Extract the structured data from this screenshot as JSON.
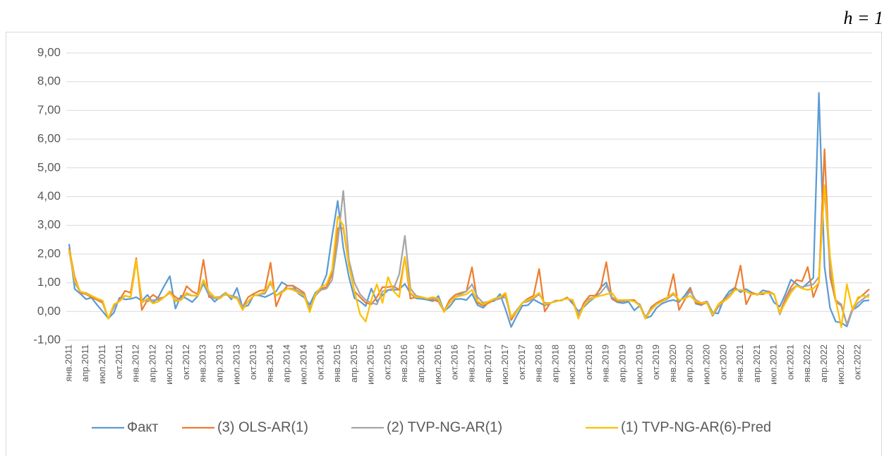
{
  "chart_data": {
    "type": "line",
    "annotation": "h = 1",
    "categories": [
      "янв.2011",
      null,
      null,
      "апр.2011",
      null,
      null,
      "июл.2011",
      null,
      null,
      "окт.2011",
      null,
      null,
      "янв.2012",
      null,
      null,
      "апр.2012",
      null,
      null,
      "июл.2012",
      null,
      null,
      "окт.2012",
      null,
      null,
      "янв.2013",
      null,
      null,
      "апр.2013",
      null,
      null,
      "июл.2013",
      null,
      null,
      "окт.2013",
      null,
      null,
      "янв.2014",
      null,
      null,
      "апр.2014",
      null,
      null,
      "июл.2014",
      null,
      null,
      "окт.2014",
      null,
      null,
      "янв.2015",
      null,
      null,
      "апр.2015",
      null,
      null,
      "июл.2015",
      null,
      null,
      "окт.2015",
      null,
      null,
      "янв.2016",
      null,
      null,
      "апр.2016",
      null,
      null,
      "июл.2016",
      null,
      null,
      "окт.2016",
      null,
      null,
      "янв.2017",
      null,
      null,
      "апр.2017",
      null,
      null,
      "июл.2017",
      null,
      null,
      "окт.2017",
      null,
      null,
      "янв.2018",
      null,
      null,
      "апр.2018",
      null,
      null,
      "июл.2018",
      null,
      null,
      "окт.2018",
      null,
      null,
      "янв.2019",
      null,
      null,
      "апр.2019",
      null,
      null,
      "июл.2019",
      null,
      null,
      "окт.2019",
      null,
      null,
      "янв.2020",
      null,
      null,
      "апр.2020",
      null,
      null,
      "июл.2020",
      null,
      null,
      "окт.2020",
      null,
      null,
      "янв.2021",
      null,
      null,
      "апр.2021",
      null,
      null,
      "июл.2021",
      null,
      null,
      "окт.2021",
      null,
      null,
      "янв.2022",
      null,
      null,
      "апр.2022",
      null,
      null,
      "июл.2022",
      null,
      null,
      "окт.2022",
      null,
      null
    ],
    "series": [
      {
        "name": "Факт",
        "color": "#5b9bd5",
        "values": [
          2.35,
          0.78,
          0.62,
          0.43,
          0.48,
          0.23,
          0.0,
          -0.24,
          -0.04,
          0.48,
          0.42,
          0.44,
          0.5,
          0.37,
          0.58,
          0.3,
          0.52,
          0.89,
          1.23,
          0.1,
          0.55,
          0.45,
          0.33,
          0.54,
          0.97,
          0.56,
          0.34,
          0.51,
          0.66,
          0.42,
          0.82,
          0.14,
          0.21,
          0.57,
          0.56,
          0.5,
          0.59,
          0.7,
          1.02,
          0.9,
          0.9,
          0.62,
          0.49,
          0.24,
          0.65,
          0.82,
          1.28,
          2.62,
          3.85,
          2.22,
          1.21,
          0.46,
          0.35,
          0.19,
          0.8,
          0.35,
          0.57,
          0.74,
          0.75,
          0.77,
          0.96,
          0.63,
          0.46,
          0.44,
          0.41,
          0.36,
          0.54,
          0.01,
          0.17,
          0.43,
          0.44,
          0.4,
          0.62,
          0.22,
          0.13,
          0.33,
          0.37,
          0.61,
          0.07,
          -0.54,
          -0.15,
          0.2,
          0.22,
          0.42,
          0.31,
          0.21,
          0.29,
          0.38,
          0.38,
          0.49,
          0.27,
          0.01,
          0.16,
          0.35,
          0.5,
          0.84,
          1.01,
          0.44,
          0.32,
          0.29,
          0.34,
          0.04,
          0.2,
          -0.24,
          -0.16,
          0.13,
          0.28,
          0.36,
          0.4,
          0.33,
          0.55,
          0.83,
          0.27,
          0.22,
          0.35,
          -0.04,
          -0.07,
          0.43,
          0.71,
          0.83,
          0.67,
          0.78,
          0.66,
          0.58,
          0.74,
          0.69,
          0.31,
          0.17,
          0.6,
          1.11,
          0.96,
          0.82,
          0.99,
          1.17,
          7.61,
          1.56,
          0.12,
          -0.35,
          -0.39,
          -0.52,
          0.05,
          0.18,
          0.37,
          0.39
        ]
      },
      {
        "name": "(3) OLS-AR(1)",
        "color": "#ed7d31",
        "values": [
          2.2,
          1.2,
          0.65,
          0.6,
          0.5,
          0.4,
          0.3,
          -0.25,
          0.2,
          0.4,
          0.72,
          0.65,
          1.86,
          0.05,
          0.4,
          0.58,
          0.45,
          0.5,
          0.7,
          0.5,
          0.4,
          0.88,
          0.7,
          0.6,
          1.8,
          0.5,
          0.5,
          0.5,
          0.6,
          0.5,
          0.5,
          0.15,
          0.5,
          0.62,
          0.72,
          0.75,
          1.7,
          0.18,
          0.65,
          0.9,
          0.9,
          0.78,
          0.65,
          0.05,
          0.55,
          0.8,
          0.85,
          1.3,
          2.9,
          2.9,
          1.6,
          0.7,
          0.5,
          0.3,
          0.25,
          0.5,
          0.85,
          0.85,
          0.88,
          0.75,
          1.9,
          0.45,
          0.5,
          0.5,
          0.45,
          0.4,
          0.35,
          0.0,
          0.4,
          0.58,
          0.65,
          0.7,
          1.54,
          0.3,
          0.2,
          0.3,
          0.4,
          0.45,
          0.6,
          -0.3,
          0.0,
          0.3,
          0.45,
          0.55,
          1.48,
          0.0,
          0.3,
          0.35,
          0.4,
          0.48,
          0.35,
          -0.15,
          0.3,
          0.55,
          0.55,
          0.8,
          1.72,
          0.45,
          0.35,
          0.35,
          0.4,
          0.4,
          0.2,
          -0.25,
          0.15,
          0.3,
          0.4,
          0.5,
          1.3,
          0.05,
          0.4,
          0.8,
          0.3,
          0.25,
          0.3,
          -0.15,
          0.25,
          0.4,
          0.6,
          0.8,
          1.6,
          0.25,
          0.65,
          0.6,
          0.6,
          0.7,
          0.6,
          -0.05,
          0.45,
          0.85,
          1.1,
          1.05,
          1.55,
          0.5,
          1.0,
          5.65,
          1.2,
          0.35,
          0.2,
          -0.45,
          0.1,
          0.45,
          0.6,
          0.78
        ]
      },
      {
        "name": "(2) TVP-NG-AR(1)",
        "color": "#a5a5a5",
        "values": [
          2.1,
          1.0,
          0.68,
          0.65,
          0.55,
          0.45,
          0.35,
          -0.25,
          0.15,
          0.4,
          0.55,
          0.5,
          1.75,
          0.4,
          0.35,
          0.4,
          0.4,
          0.5,
          0.65,
          0.4,
          0.4,
          0.6,
          0.55,
          0.55,
          1.05,
          0.6,
          0.45,
          0.5,
          0.6,
          0.55,
          0.5,
          0.15,
          0.35,
          0.55,
          0.6,
          0.62,
          1.0,
          0.55,
          0.7,
          0.8,
          0.8,
          0.7,
          0.6,
          0.1,
          0.55,
          0.75,
          0.8,
          1.1,
          2.4,
          4.2,
          1.8,
          1.0,
          0.6,
          0.4,
          0.3,
          0.25,
          0.7,
          0.75,
          0.8,
          1.3,
          2.63,
          0.8,
          0.55,
          0.5,
          0.45,
          0.45,
          0.4,
          0.0,
          0.3,
          0.5,
          0.6,
          0.7,
          0.95,
          0.5,
          0.3,
          0.35,
          0.4,
          0.45,
          0.5,
          -0.2,
          0.05,
          0.3,
          0.35,
          0.45,
          0.6,
          0.3,
          0.3,
          0.35,
          0.4,
          0.45,
          0.4,
          -0.1,
          0.2,
          0.45,
          0.5,
          0.65,
          0.9,
          0.5,
          0.4,
          0.35,
          0.4,
          0.35,
          0.25,
          -0.2,
          0.1,
          0.25,
          0.35,
          0.45,
          0.6,
          0.4,
          0.45,
          0.7,
          0.4,
          0.3,
          0.35,
          -0.15,
          0.15,
          0.35,
          0.6,
          0.75,
          0.75,
          0.7,
          0.6,
          0.6,
          0.65,
          0.65,
          0.6,
          -0.1,
          0.35,
          0.75,
          0.9,
          0.85,
          0.9,
          0.95,
          1.2,
          4.3,
          1.5,
          0.4,
          0.25,
          -0.45,
          0.05,
          0.3,
          0.45,
          0.6
        ]
      },
      {
        "name": "(1) TVP-NG-AR(6)-Pred",
        "color": "#ffc000",
        "values": [
          2.15,
          1.1,
          0.7,
          0.62,
          0.55,
          0.45,
          0.38,
          -0.25,
          0.25,
          0.35,
          0.55,
          0.5,
          1.8,
          0.3,
          0.45,
          0.28,
          0.35,
          0.5,
          0.68,
          0.35,
          0.4,
          0.65,
          0.55,
          0.55,
          1.1,
          0.7,
          0.5,
          0.45,
          0.65,
          0.5,
          0.45,
          0.05,
          0.35,
          0.55,
          0.6,
          0.7,
          1.05,
          0.55,
          0.65,
          0.8,
          0.75,
          0.65,
          0.55,
          -0.02,
          0.6,
          0.85,
          0.95,
          1.45,
          3.3,
          3.0,
          1.6,
          0.7,
          -0.1,
          -0.35,
          0.4,
          0.95,
          0.3,
          1.2,
          0.7,
          0.5,
          1.9,
          0.65,
          0.5,
          0.5,
          0.45,
          0.5,
          0.45,
          -0.02,
          0.3,
          0.5,
          0.55,
          0.6,
          0.75,
          0.35,
          0.25,
          0.35,
          0.45,
          0.5,
          0.65,
          -0.2,
          0.0,
          0.3,
          0.4,
          0.5,
          0.65,
          0.25,
          0.3,
          0.35,
          0.4,
          0.45,
          0.4,
          -0.25,
          0.2,
          0.4,
          0.5,
          0.55,
          0.6,
          0.65,
          0.4,
          0.4,
          0.4,
          0.35,
          0.2,
          -0.25,
          0.05,
          0.25,
          0.35,
          0.5,
          0.65,
          0.4,
          0.45,
          0.55,
          0.35,
          0.3,
          0.3,
          -0.1,
          0.25,
          0.35,
          0.5,
          0.75,
          0.75,
          0.7,
          0.6,
          0.6,
          0.65,
          0.65,
          0.6,
          -0.05,
          0.3,
          0.65,
          0.9,
          0.8,
          0.75,
          0.8,
          1.0,
          4.4,
          1.9,
          0.4,
          -0.55,
          0.95,
          0.05,
          0.5,
          0.55,
          0.5
        ]
      }
    ],
    "ylim": [
      -1,
      9
    ],
    "yticks": [
      {
        "value": -1,
        "label": "-1,00"
      },
      {
        "value": 0,
        "label": "0,00"
      },
      {
        "value": 1,
        "label": "1,00"
      },
      {
        "value": 2,
        "label": "2,00"
      },
      {
        "value": 3,
        "label": "3,00"
      },
      {
        "value": 4,
        "label": "4,00"
      },
      {
        "value": 5,
        "label": "5,00"
      },
      {
        "value": 6,
        "label": "6,00"
      },
      {
        "value": 7,
        "label": "7,00"
      },
      {
        "value": 8,
        "label": "8,00"
      },
      {
        "value": 9,
        "label": "9,00"
      }
    ],
    "grid": true,
    "legend": "bottom"
  }
}
